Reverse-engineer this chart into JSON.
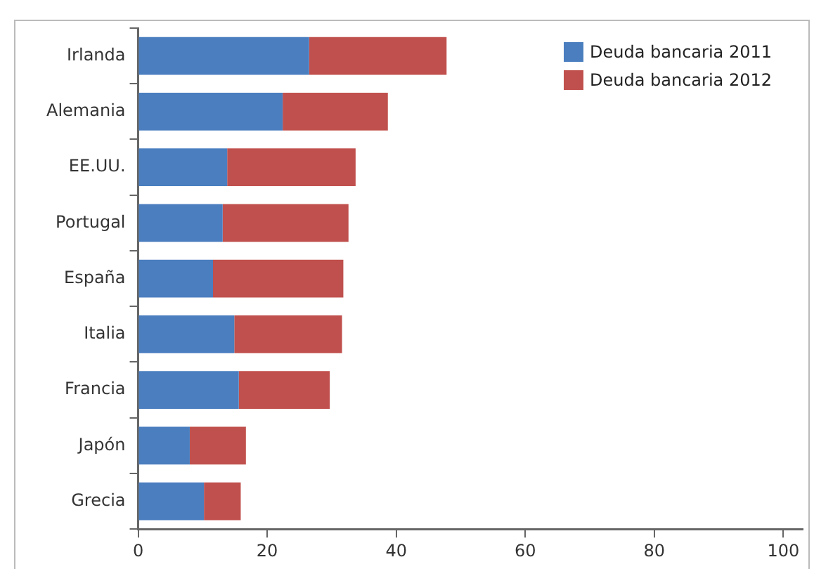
{
  "chart_data": {
    "type": "bar",
    "orientation": "horizontal",
    "stacked": true,
    "categories": [
      "Irlanda",
      "Alemania",
      "EE.UU.",
      "Portugal",
      "España",
      "Italia",
      "Francia",
      "Japón",
      "Grecia"
    ],
    "series": [
      {
        "name": "Deuda bancaria 2011",
        "color": "#4a7ebf",
        "values": [
          26.5,
          22.4,
          13.8,
          13.1,
          11.6,
          14.9,
          15.6,
          8.0,
          10.2
        ]
      },
      {
        "name": "Deuda bancaria 2012",
        "color": "#c0504d",
        "values": [
          21.3,
          16.3,
          19.9,
          19.5,
          20.2,
          16.7,
          14.1,
          8.7,
          5.7
        ]
      }
    ],
    "xlim": [
      0,
      103
    ],
    "xticks": [
      0,
      20,
      40,
      60,
      80,
      100
    ],
    "grid": false,
    "legend": "top right"
  }
}
